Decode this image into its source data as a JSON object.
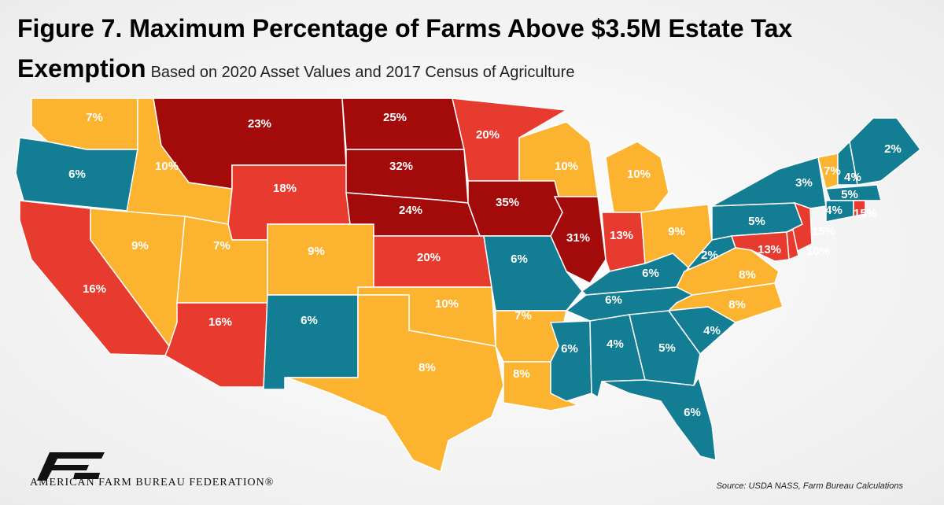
{
  "chart_data": {
    "type": "choropleth",
    "title": "Figure 7. Maximum Percentage of Farms Above $3.5M Estate Tax Exemption",
    "subtitle": "Based on 2020 Asset Values and 2017 Census of Agriculture",
    "values": [
      7,
      6,
      10,
      23,
      25,
      20,
      18,
      32,
      10,
      10,
      9,
      7,
      9,
      24,
      35,
      31,
      13,
      9,
      16,
      16,
      6,
      20,
      6,
      6,
      2,
      5,
      3,
      7,
      4,
      2,
      5,
      4,
      15,
      15,
      10,
      13,
      8,
      8,
      6,
      10,
      7,
      8,
      8,
      6,
      4,
      5,
      4,
      6
    ],
    "value_labels": [
      "7%",
      "6%",
      "10%",
      "23%",
      "25%",
      "20%",
      "18%",
      "32%",
      "10%",
      "10%",
      "9%",
      "7%",
      "9%",
      "24%",
      "35%",
      "31%",
      "13%",
      "9%",
      "16%",
      "16%",
      "6%",
      "20%",
      "6%",
      "6%",
      "2%",
      "5%",
      "3%",
      "7%",
      "4%",
      "2%",
      "5%",
      "4%",
      "15%",
      "15%",
      "10%",
      "13%",
      "8%",
      "8%",
      "6%",
      "10%",
      "7%",
      "8%",
      "8%",
      "6%",
      "4%",
      "5%",
      "4%",
      "6%"
    ],
    "colors": [
      "#fbb330",
      "#137e93",
      "#fbb330",
      "#a30b0b",
      "#a30b0b",
      "#e63b2e",
      "#e63b2e",
      "#a30b0b",
      "#fbb330",
      "#fbb330",
      "#fbb330",
      "#fbb330",
      "#fbb330",
      "#a30b0b",
      "#a30b0b",
      "#a30b0b",
      "#e63b2e",
      "#fbb330",
      "#e63b2e",
      "#e63b2e",
      "#137e93",
      "#e63b2e",
      "#137e93",
      "#137e93",
      "#137e93",
      "#137e93",
      "#137e93",
      "#fbb330",
      "#137e93",
      "#137e93",
      "#137e93",
      "#137e93",
      "#e63b2e",
      "#e63b2e",
      "#e63b2e",
      "#e63b2e",
      "#fbb330",
      "#fbb330",
      "#137e93",
      "#fbb330",
      "#fbb330",
      "#fbb330",
      "#fbb330",
      "#137e93",
      "#137e93",
      "#137e93",
      "#137e93",
      "#137e93"
    ],
    "logo_text": "AMERICAN FARM BUREAU FEDERATION®",
    "source": "Source: USDA NASS, Farm Bureau Calculations"
  }
}
